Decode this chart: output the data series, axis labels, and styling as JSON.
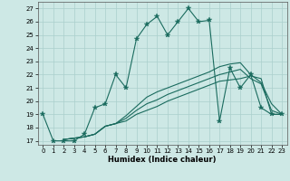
{
  "title": "",
  "xlabel": "Humidex (Indice chaleur)",
  "xlim": [
    -0.5,
    23.5
  ],
  "ylim": [
    16.7,
    27.5
  ],
  "yticks": [
    17,
    18,
    19,
    20,
    21,
    22,
    23,
    24,
    25,
    26,
    27
  ],
  "xticks": [
    0,
    1,
    2,
    3,
    4,
    5,
    6,
    7,
    8,
    9,
    10,
    11,
    12,
    13,
    14,
    15,
    16,
    17,
    18,
    19,
    20,
    21,
    22,
    23
  ],
  "background_color": "#cde8e5",
  "grid_color": "#aacfcc",
  "line_color": "#1a6b5e",
  "line1": {
    "x": [
      0,
      1,
      2,
      3,
      4,
      5,
      6,
      7,
      8,
      9,
      10,
      11,
      12,
      13,
      14,
      15,
      16,
      17,
      18,
      19,
      20,
      21,
      22,
      23
    ],
    "y": [
      19,
      17,
      17,
      17,
      17.5,
      19.5,
      19.8,
      22,
      21,
      24.7,
      25.8,
      26.4,
      25.0,
      26.0,
      27.0,
      26.0,
      26.1,
      18.5,
      22.5,
      21.0,
      22.0,
      19.5,
      19.0,
      19.0
    ]
  },
  "line2": {
    "x": [
      2,
      3,
      4,
      5,
      6,
      7,
      8,
      9,
      10,
      11,
      12,
      13,
      14,
      15,
      16,
      17,
      18,
      19,
      20,
      21,
      22,
      23
    ],
    "y": [
      17.1,
      17.2,
      17.3,
      17.5,
      18.1,
      18.3,
      18.5,
      19.0,
      19.3,
      19.6,
      20.0,
      20.3,
      20.6,
      20.9,
      21.2,
      21.5,
      21.6,
      21.7,
      21.9,
      21.7,
      19.0,
      19.0
    ]
  },
  "line3": {
    "x": [
      2,
      3,
      4,
      5,
      6,
      7,
      8,
      9,
      10,
      11,
      12,
      13,
      14,
      15,
      16,
      17,
      18,
      19,
      20,
      21,
      22,
      23
    ],
    "y": [
      17.1,
      17.2,
      17.3,
      17.5,
      18.1,
      18.3,
      18.7,
      19.3,
      19.8,
      20.1,
      20.5,
      20.8,
      21.1,
      21.4,
      21.7,
      22.0,
      22.2,
      22.4,
      21.7,
      21.3,
      19.3,
      19.0
    ]
  },
  "line4": {
    "x": [
      2,
      3,
      4,
      5,
      6,
      7,
      8,
      9,
      10,
      11,
      12,
      13,
      14,
      15,
      16,
      17,
      18,
      19,
      20,
      21,
      22,
      23
    ],
    "y": [
      17.1,
      17.2,
      17.3,
      17.5,
      18.1,
      18.3,
      18.9,
      19.6,
      20.3,
      20.7,
      21.0,
      21.3,
      21.6,
      21.9,
      22.2,
      22.6,
      22.8,
      22.9,
      22.0,
      21.4,
      19.8,
      19.0
    ]
  }
}
